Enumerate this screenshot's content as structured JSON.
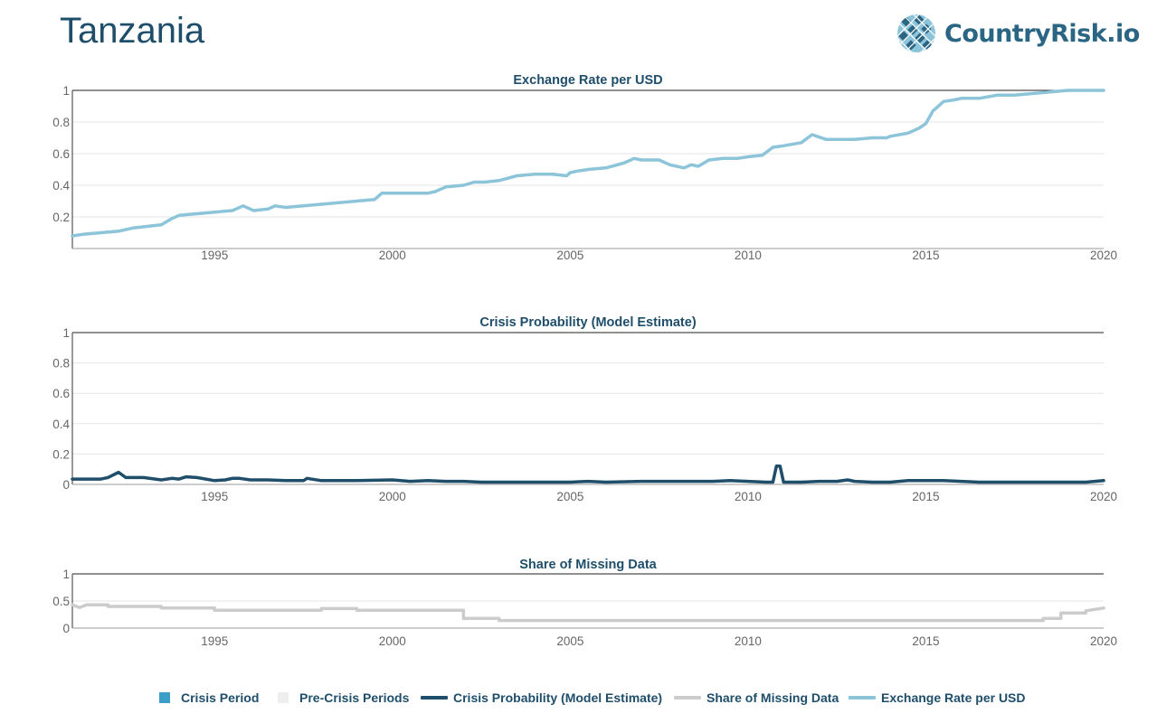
{
  "header": {
    "country": "Tanzania",
    "brand": "CountryRisk.io"
  },
  "colors": {
    "exchange": "#8cc4d9",
    "crisis_prob": "#1f4e6b",
    "missing": "#cccccc",
    "crisis_period": "#3a9ec6",
    "pre_crisis": "#eeeeee",
    "axis_text": "#666666",
    "title": "#1f4e6b"
  },
  "legend": [
    {
      "label": "Crisis Period",
      "kind": "square",
      "color": "#3a9ec6"
    },
    {
      "label": "Pre-Crisis Periods",
      "kind": "square",
      "color": "#eeeeee"
    },
    {
      "label": "Crisis Probability (Model Estimate)",
      "kind": "line",
      "color": "#1f4e6b"
    },
    {
      "label": "Share of Missing Data",
      "kind": "line",
      "color": "#cccccc"
    },
    {
      "label": "Exchange Rate per USD",
      "kind": "line",
      "color": "#8cc4d9"
    }
  ],
  "chart_data": [
    {
      "type": "line",
      "title": "Exchange Rate per USD",
      "xlim": [
        1991,
        2020
      ],
      "ylim": [
        0,
        1
      ],
      "xticks": [
        "1995",
        "2000",
        "2005",
        "2010",
        "2015",
        "2020"
      ],
      "yticks": [
        "0.2",
        "0.4",
        "0.6",
        "0.8",
        "1"
      ],
      "grid": true,
      "series": [
        {
          "name": "Exchange Rate per USD",
          "color": "#8cc4d9",
          "x": [
            1991.0,
            1991.3,
            1991.8,
            1992.3,
            1992.7,
            1993.5,
            1993.8,
            1994.0,
            1994.5,
            1995.0,
            1995.5,
            1995.8,
            1996.1,
            1996.5,
            1996.7,
            1997.0,
            1997.5,
            1998.0,
            1998.5,
            1999.0,
            1999.5,
            1999.7,
            2000.0,
            2001.0,
            2001.2,
            2001.5,
            2002.0,
            2002.3,
            2002.6,
            2003.0,
            2003.5,
            2004.0,
            2004.5,
            2004.9,
            2005.0,
            2005.2,
            2005.5,
            2006.0,
            2006.5,
            2006.8,
            2007.0,
            2007.5,
            2007.8,
            2008.2,
            2008.4,
            2008.6,
            2008.9,
            2009.3,
            2009.7,
            2010.0,
            2010.4,
            2010.7,
            2011.0,
            2011.5,
            2011.8,
            2012.2,
            2012.5,
            2013.0,
            2013.5,
            2013.9,
            2014.0,
            2014.5,
            2014.8,
            2015.0,
            2015.2,
            2015.5,
            2015.8,
            2016.0,
            2016.5,
            2017.0,
            2017.5,
            2018.0,
            2018.5,
            2019.0,
            2019.5,
            2020.0
          ],
          "y": [
            0.08,
            0.09,
            0.1,
            0.11,
            0.13,
            0.15,
            0.19,
            0.21,
            0.22,
            0.23,
            0.24,
            0.27,
            0.24,
            0.25,
            0.27,
            0.26,
            0.27,
            0.28,
            0.29,
            0.3,
            0.31,
            0.35,
            0.35,
            0.35,
            0.36,
            0.39,
            0.4,
            0.42,
            0.42,
            0.43,
            0.46,
            0.47,
            0.47,
            0.46,
            0.48,
            0.49,
            0.5,
            0.51,
            0.54,
            0.57,
            0.56,
            0.56,
            0.53,
            0.51,
            0.53,
            0.52,
            0.56,
            0.57,
            0.57,
            0.58,
            0.59,
            0.64,
            0.65,
            0.67,
            0.72,
            0.69,
            0.69,
            0.69,
            0.7,
            0.7,
            0.71,
            0.73,
            0.76,
            0.79,
            0.87,
            0.93,
            0.94,
            0.95,
            0.95,
            0.97,
            0.97,
            0.98,
            0.99,
            1.0,
            1.0,
            1.0
          ]
        }
      ]
    },
    {
      "type": "line",
      "title": "Crisis Probability (Model Estimate)",
      "xlim": [
        1991,
        2020
      ],
      "ylim": [
        0,
        1
      ],
      "xticks": [
        "1995",
        "2000",
        "2005",
        "2010",
        "2015",
        "2020"
      ],
      "yticks": [
        "0",
        "0.2",
        "0.4",
        "0.6",
        "0.8",
        "1"
      ],
      "grid": true,
      "series": [
        {
          "name": "Crisis Probability (Model Estimate)",
          "color": "#1f4e6b",
          "x": [
            1991.0,
            1991.8,
            1992.0,
            1992.3,
            1992.5,
            1993.0,
            1993.5,
            1993.8,
            1994.0,
            1994.2,
            1994.5,
            1995.0,
            1995.3,
            1995.5,
            1995.7,
            1996.0,
            1996.5,
            1997.0,
            1997.5,
            1997.6,
            1998.0,
            1999.0,
            2000.0,
            2000.5,
            2001.0,
            2001.5,
            2002.0,
            2002.5,
            2003.0,
            2004.0,
            2005.0,
            2005.5,
            2006.0,
            2007.0,
            2007.5,
            2008.0,
            2009.0,
            2009.5,
            2010.0,
            2010.5,
            2010.7,
            2010.8,
            2010.9,
            2011.0,
            2011.5,
            2012.0,
            2012.5,
            2012.8,
            2013.0,
            2013.5,
            2014.0,
            2014.5,
            2015.0,
            2015.5,
            2016.0,
            2016.5,
            2017.0,
            2018.0,
            2018.5,
            2019.0,
            2019.5,
            2020.0
          ],
          "y": [
            0.035,
            0.035,
            0.045,
            0.08,
            0.045,
            0.045,
            0.03,
            0.04,
            0.035,
            0.05,
            0.045,
            0.025,
            0.03,
            0.04,
            0.04,
            0.03,
            0.03,
            0.025,
            0.025,
            0.04,
            0.025,
            0.025,
            0.03,
            0.02,
            0.025,
            0.02,
            0.02,
            0.015,
            0.015,
            0.015,
            0.015,
            0.02,
            0.015,
            0.02,
            0.02,
            0.02,
            0.02,
            0.025,
            0.02,
            0.015,
            0.015,
            0.12,
            0.12,
            0.015,
            0.015,
            0.02,
            0.02,
            0.03,
            0.02,
            0.015,
            0.015,
            0.025,
            0.025,
            0.025,
            0.02,
            0.015,
            0.015,
            0.015,
            0.015,
            0.015,
            0.015,
            0.025
          ]
        }
      ]
    },
    {
      "type": "line",
      "title": "Share of Missing Data",
      "xlim": [
        1991,
        2020
      ],
      "ylim": [
        0,
        1
      ],
      "xticks": [
        "1995",
        "2000",
        "2005",
        "2010",
        "2015",
        "2020"
      ],
      "yticks": [
        "0",
        "0.5",
        "1"
      ],
      "grid": true,
      "series": [
        {
          "name": "Share of Missing Data",
          "color": "#cccccc",
          "x": [
            1991.0,
            1991.2,
            1991.4,
            1992.0,
            1992.0,
            1993.5,
            1993.5,
            1995.0,
            1995.0,
            1998.0,
            1998.0,
            1999.0,
            1999.0,
            2002.0,
            2002.0,
            2003.0,
            2003.0,
            2018.3,
            2018.3,
            2018.8,
            2018.8,
            2019.5,
            2019.5,
            2020.0
          ],
          "y": [
            0.43,
            0.38,
            0.43,
            0.43,
            0.4,
            0.4,
            0.37,
            0.37,
            0.33,
            0.33,
            0.36,
            0.36,
            0.33,
            0.33,
            0.18,
            0.18,
            0.14,
            0.14,
            0.18,
            0.18,
            0.28,
            0.28,
            0.32,
            0.37
          ]
        }
      ]
    }
  ]
}
